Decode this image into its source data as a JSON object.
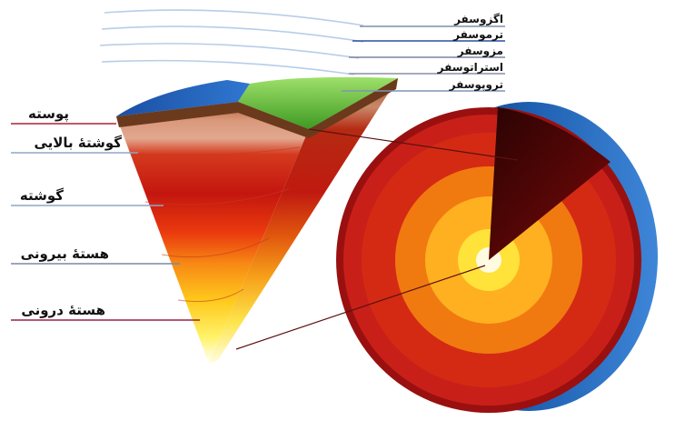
{
  "atmosphere_layers": [
    {
      "label": "اگزوسفر"
    },
    {
      "label": "ترموسفر"
    },
    {
      "label": "مزوسفر"
    },
    {
      "label": "استراتوسفر"
    },
    {
      "label": "تروپوسفر"
    }
  ],
  "earth_layers": [
    {
      "label": "پوسته"
    },
    {
      "label": "گوشتۀ بالایی"
    },
    {
      "label": "گوشته"
    },
    {
      "label": "هستۀ بیرونی"
    },
    {
      "label": "هستۀ درونی"
    }
  ],
  "colors": {
    "exosphere_line": "#7f8fa8",
    "thermosphere_line": "#2a4fa0",
    "mesosphere_line": "#7a86a0",
    "stratosphere_line": "#8a8fa6",
    "troposphere_line": "#7f93b8",
    "crust_line": "#b0203a",
    "mantle_line": "#8fa6c8",
    "outer_core_line": "#7c88a6",
    "inner_core_line": "#9c2040",
    "ocean_blue": "#1d5fb0",
    "land_green": "#5fc23a",
    "mantle_red": "#c81414",
    "outer_core_orange": "#f07a10",
    "inner_core_yellow": "#ffe23a"
  }
}
